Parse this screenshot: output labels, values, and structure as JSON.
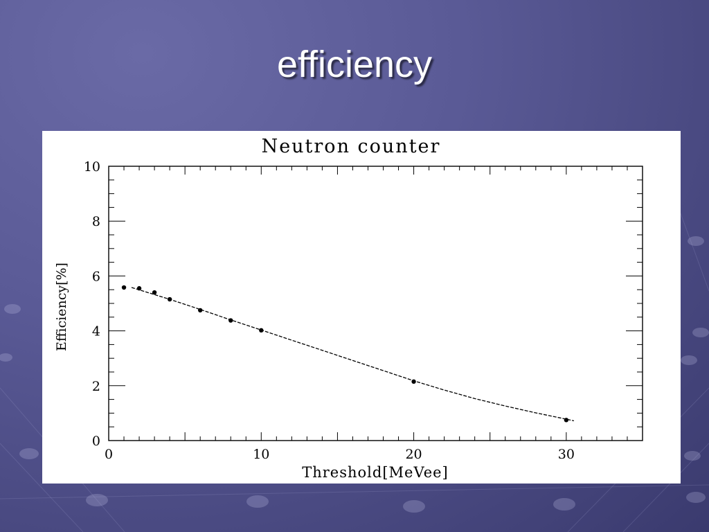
{
  "slide": {
    "title": "efficiency"
  },
  "colors": {
    "background": "#5a5a96",
    "title_text": "#ffffff",
    "panel": "#ffffff",
    "ink": "#000000"
  },
  "chart_data": {
    "type": "scatter",
    "title": "Neutron counter",
    "xlabel": "Threshold[MeVee]",
    "ylabel": "Efficiency[%]",
    "xlim": [
      0,
      35
    ],
    "ylim": [
      0,
      10
    ],
    "x_ticks": [
      0,
      10,
      20,
      30
    ],
    "y_ticks": [
      0,
      2,
      4,
      6,
      8,
      10
    ],
    "grid": false,
    "points": {
      "x": [
        1,
        2,
        3,
        4,
        6,
        8,
        10,
        20,
        30
      ],
      "y": [
        5.58,
        5.55,
        5.4,
        5.15,
        4.75,
        4.38,
        4.02,
        2.15,
        0.75
      ]
    },
    "fit_curve": {
      "style": "dashed",
      "x": [
        1.5,
        4,
        6,
        8,
        10,
        12,
        14,
        16,
        18,
        20,
        22,
        24,
        26,
        28,
        30,
        30.5
      ],
      "y": [
        5.58,
        5.15,
        4.78,
        4.4,
        4.03,
        3.66,
        3.29,
        2.92,
        2.55,
        2.18,
        1.84,
        1.53,
        1.26,
        1.01,
        0.78,
        0.72
      ]
    }
  }
}
